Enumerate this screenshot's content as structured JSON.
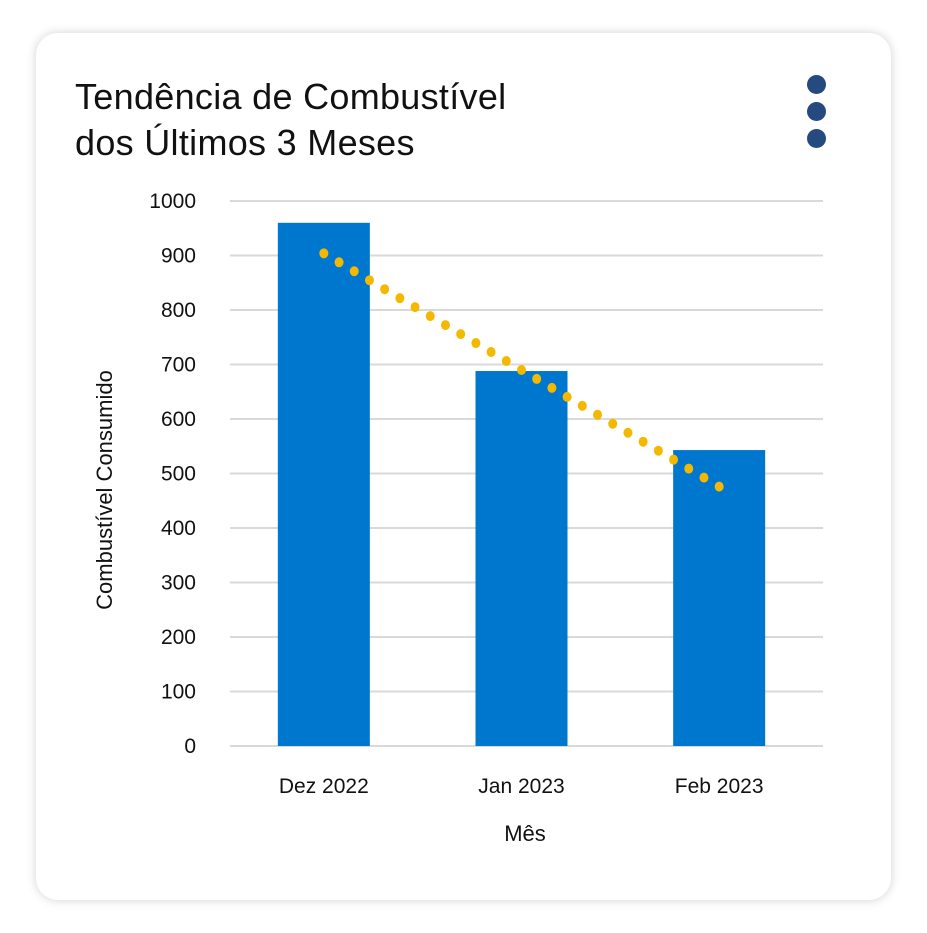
{
  "card": {
    "title_line1": "Tendência de Combustível",
    "title_line2": "dos Últimos 3 Meses",
    "menu_icon": "kebab-vertical-dots-icon"
  },
  "chart_data": {
    "type": "bar",
    "title": "Tendência de Combustível dos Últimos 3 Meses",
    "xlabel": "Mês",
    "ylabel": "Combustível Consumido",
    "categories": [
      "Dez 2022",
      "Jan 2023",
      "Feb 2023"
    ],
    "values": [
      960,
      688,
      543
    ],
    "ylim": [
      0,
      1000
    ],
    "yticks": [
      0,
      100,
      200,
      300,
      400,
      500,
      600,
      700,
      800,
      900,
      1000
    ],
    "grid": true,
    "bar_color": "#0077cf",
    "trendline": {
      "type": "linear",
      "style": "dotted",
      "color": "#f5b800",
      "start": 904,
      "end": 476
    },
    "grid_color": "#d9d9d9"
  }
}
